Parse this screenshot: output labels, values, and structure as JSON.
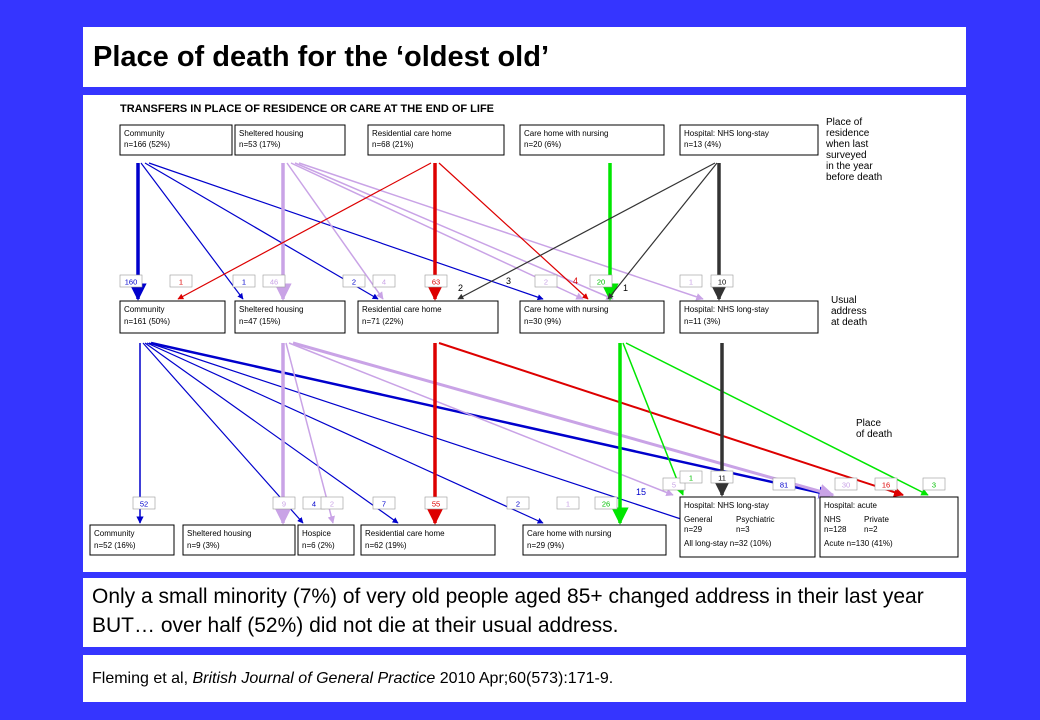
{
  "title": "Place of death for the ‘oldest old’",
  "diagram": {
    "heading": "TRANSFERS IN PLACE OF RESIDENCE OR CARE AT THE END OF LIFE",
    "side_labels": {
      "top": [
        "Place of",
        "residence",
        "when last",
        "surveyed",
        "in the year",
        "before death"
      ],
      "middle": [
        "Usual",
        "address",
        "at death"
      ],
      "bottom": [
        "Place",
        "of death"
      ]
    },
    "colors": {
      "blue": "#0000cc",
      "lilac": "#c9a3e6",
      "red": "#dd0000",
      "green": "#00e600",
      "black": "#333333"
    },
    "top_boxes": [
      {
        "name": "Community",
        "count": "n=166 (52%)"
      },
      {
        "name": "Sheltered housing",
        "count": "n=53 (17%)"
      },
      {
        "name": "Residential care home",
        "count": "n=68 (21%)"
      },
      {
        "name": "Care home with nursing",
        "count": "n=20 (6%)"
      },
      {
        "name": "Hospital: NHS long-stay",
        "count": "n=13 (4%)"
      }
    ],
    "middle_boxes": [
      {
        "name": "Community",
        "count": "n=161 (50%)"
      },
      {
        "name": "Sheltered housing",
        "count": "n=47 (15%)"
      },
      {
        "name": "Residential care home",
        "count": "n=71 (22%)"
      },
      {
        "name": "Care home with nursing",
        "count": "n=30 (9%)"
      },
      {
        "name": "Hospital: NHS long-stay",
        "count": "n=11 (3%)"
      }
    ],
    "bottom_boxes": [
      {
        "name": "Community",
        "count": "n=52 (16%)"
      },
      {
        "name": "Sheltered housing",
        "count": "n=9 (3%)"
      },
      {
        "name": "Hospice",
        "count": "n=6 (2%)"
      },
      {
        "name": "Residential care home",
        "count": "n=62 (19%)"
      },
      {
        "name": "Care home with nursing",
        "count": "n=29 (9%)"
      }
    ],
    "hospital_longstay_box": {
      "name": "Hospital: NHS long-stay",
      "col1": "General",
      "col2": "Psychiatric",
      "n1": "n=29",
      "n2": "n=3",
      "total": "All long-stay n=32 (10%)"
    },
    "hospital_acute_box": {
      "name": "Hospital: acute",
      "col1": "NHS",
      "col2": "Private",
      "n1": "n=128",
      "n2": "n=2",
      "total": "Acute n=130 (41%)"
    },
    "flow_labels_level1": [
      "160",
      "1",
      "1",
      "46",
      "2",
      "4",
      "63",
      "3",
      "2",
      "2",
      "4",
      "20",
      "1",
      "1",
      "10"
    ],
    "flow_labels_level2": [
      "52",
      "9",
      "4",
      "2",
      "7",
      "55",
      "2",
      "1",
      "26",
      "15",
      "5",
      "1",
      "11",
      "81",
      "30",
      "16",
      "3"
    ]
  },
  "caption": "Only a small minority (7%) of very old people aged 85+ changed address in their last year BUT… over half (52%) did not die at their usual address.",
  "reference": {
    "authors": "Fleming et al, ",
    "journal": "British Journal of General Practice",
    "details": " 2010 Apr;60(573):171-9."
  }
}
